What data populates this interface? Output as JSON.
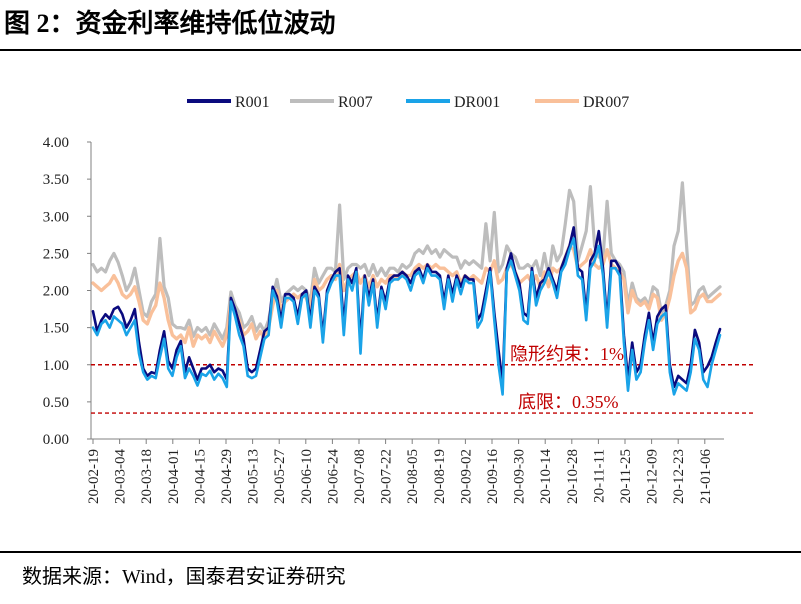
{
  "figure": {
    "title": "图 2：资金利率维持低位波动",
    "source": "数据来源：Wind，国泰君安证券研究"
  },
  "chart_data": {
    "type": "line",
    "title": "",
    "xlabel": "",
    "ylabel": "",
    "ylim": [
      0,
      4
    ],
    "yticks": [
      "0.00",
      "0.50",
      "1.00",
      "1.50",
      "2.00",
      "2.50",
      "3.00",
      "3.50",
      "4.00"
    ],
    "x_tick_labels": [
      "20-02-19",
      "20-03-04",
      "20-03-18",
      "20-04-01",
      "20-04-15",
      "20-04-29",
      "20-05-13",
      "20-05-27",
      "20-06-10",
      "20-06-24",
      "20-07-08",
      "20-07-22",
      "20-08-05",
      "20-08-19",
      "20-09-02",
      "20-09-16",
      "20-09-30",
      "20-10-14",
      "20-10-28",
      "20-11-11",
      "20-11-25",
      "20-12-09",
      "20-12-23",
      "21-01-06"
    ],
    "legend_position": "top",
    "grid": false,
    "series": [
      {
        "name": "R001",
        "color": "#0a0a7e",
        "values": [
          1.72,
          1.45,
          1.6,
          1.68,
          1.62,
          1.75,
          1.78,
          1.68,
          1.5,
          1.6,
          1.75,
          1.3,
          0.95,
          0.85,
          0.9,
          0.88,
          1.2,
          1.45,
          1.05,
          0.95,
          1.2,
          1.32,
          0.9,
          1.1,
          0.95,
          0.8,
          0.95,
          0.95,
          1.0,
          0.9,
          0.95,
          0.92,
          0.8,
          1.9,
          1.75,
          1.55,
          1.35,
          0.95,
          0.9,
          0.95,
          1.2,
          1.45,
          1.5,
          2.05,
          1.92,
          1.6,
          1.95,
          1.95,
          1.9,
          1.65,
          1.95,
          2.0,
          1.6,
          2.05,
          1.95,
          1.4,
          2.0,
          2.15,
          2.25,
          2.3,
          1.55,
          2.2,
          2.1,
          2.3,
          1.3,
          2.2,
          1.9,
          2.15,
          1.6,
          2.05,
          1.85,
          2.15,
          2.2,
          2.2,
          2.25,
          2.2,
          2.1,
          2.25,
          2.3,
          2.15,
          2.35,
          2.25,
          2.25,
          2.2,
          1.85,
          2.2,
          1.95,
          2.2,
          2.05,
          2.2,
          2.15,
          2.15,
          1.6,
          1.7,
          2.0,
          2.3,
          1.7,
          1.2,
          0.75,
          2.3,
          2.5,
          2.25,
          2.1,
          1.7,
          1.65,
          2.3,
          1.9,
          2.1,
          2.15,
          2.3,
          2.15,
          2.0,
          2.3,
          2.45,
          2.6,
          2.85,
          2.3,
          2.25,
          1.7,
          2.4,
          2.5,
          2.8,
          2.3,
          1.6,
          2.4,
          2.4,
          2.3,
          1.4,
          0.8,
          1.3,
          0.9,
          1.0,
          1.4,
          1.7,
          1.3,
          1.65,
          1.75,
          1.8,
          1.0,
          0.7,
          0.85,
          0.8,
          0.75,
          1.0,
          1.47,
          1.3,
          0.9,
          0.98,
          1.1,
          1.3,
          1.48
        ]
      },
      {
        "name": "R007",
        "color": "#bdbdbd",
        "values": [
          2.35,
          2.25,
          2.3,
          2.25,
          2.4,
          2.5,
          2.38,
          2.2,
          2.0,
          2.1,
          2.3,
          2.0,
          1.7,
          1.65,
          1.85,
          1.95,
          2.7,
          2.05,
          1.9,
          1.55,
          1.5,
          1.5,
          1.48,
          1.6,
          1.38,
          1.5,
          1.45,
          1.5,
          1.4,
          1.55,
          1.45,
          1.35,
          1.5,
          1.98,
          1.8,
          1.7,
          1.5,
          1.55,
          1.65,
          1.45,
          1.55,
          1.45,
          1.6,
          1.9,
          2.15,
          1.85,
          1.95,
          2.0,
          2.05,
          2.0,
          2.05,
          2.0,
          1.85,
          2.3,
          2.1,
          2.2,
          2.3,
          2.3,
          2.25,
          3.15,
          2.15,
          2.3,
          2.35,
          2.35,
          2.3,
          2.35,
          2.2,
          2.35,
          2.2,
          2.3,
          2.2,
          2.3,
          2.3,
          2.25,
          2.35,
          2.3,
          2.35,
          2.5,
          2.55,
          2.5,
          2.6,
          2.5,
          2.55,
          2.45,
          2.55,
          2.5,
          2.45,
          2.45,
          2.3,
          2.4,
          2.35,
          2.4,
          2.35,
          2.3,
          2.9,
          2.4,
          3.05,
          2.25,
          2.35,
          2.6,
          2.5,
          2.45,
          2.3,
          2.3,
          2.35,
          2.3,
          2.4,
          2.2,
          2.5,
          2.2,
          2.6,
          2.4,
          2.5,
          2.9,
          3.35,
          3.2,
          2.4,
          2.6,
          2.8,
          3.4,
          2.6,
          2.45,
          2.45,
          3.2,
          2.5,
          2.4,
          2.35,
          2.25,
          1.8,
          2.1,
          1.9,
          1.85,
          1.9,
          1.8,
          2.05,
          2.0,
          1.7,
          1.8,
          2.0,
          2.6,
          2.8,
          3.45,
          2.6,
          1.8,
          1.85,
          2.0,
          2.05,
          1.9,
          1.95,
          2.0,
          2.05
        ]
      },
      {
        "name": "DR001",
        "color": "#1aa3e8",
        "values": [
          1.5,
          1.4,
          1.55,
          1.6,
          1.5,
          1.65,
          1.6,
          1.55,
          1.4,
          1.5,
          1.6,
          1.15,
          0.9,
          0.8,
          0.85,
          0.82,
          1.1,
          1.35,
          0.95,
          0.85,
          1.1,
          1.25,
          0.82,
          0.95,
          0.85,
          0.72,
          0.88,
          0.85,
          0.92,
          0.8,
          0.88,
          0.82,
          0.7,
          1.85,
          1.65,
          1.4,
          1.25,
          0.85,
          0.82,
          0.85,
          1.1,
          1.35,
          1.4,
          2.0,
          1.85,
          1.5,
          1.9,
          1.9,
          1.85,
          1.55,
          1.9,
          1.95,
          1.5,
          2.0,
          1.9,
          1.3,
          1.95,
          2.1,
          2.2,
          2.2,
          1.4,
          2.15,
          2.0,
          2.25,
          1.15,
          2.15,
          1.8,
          2.1,
          1.5,
          2.0,
          1.75,
          2.1,
          2.15,
          2.15,
          2.2,
          2.15,
          2.0,
          2.2,
          2.25,
          2.1,
          2.3,
          2.2,
          2.2,
          2.15,
          1.75,
          2.15,
          1.85,
          2.15,
          1.95,
          2.15,
          2.1,
          2.1,
          1.5,
          1.6,
          1.9,
          2.25,
          1.6,
          1.0,
          0.6,
          2.25,
          2.4,
          2.2,
          2.0,
          1.6,
          1.55,
          2.25,
          1.8,
          2.0,
          2.1,
          2.25,
          2.1,
          1.9,
          2.25,
          2.35,
          2.55,
          2.7,
          2.2,
          2.15,
          1.6,
          2.3,
          2.4,
          2.6,
          2.2,
          1.5,
          2.3,
          2.3,
          2.2,
          1.3,
          0.65,
          1.2,
          0.8,
          0.9,
          1.3,
          1.6,
          1.2,
          1.55,
          1.65,
          1.7,
          0.9,
          0.6,
          0.75,
          0.7,
          0.65,
          0.9,
          1.35,
          1.2,
          0.8,
          0.7,
          1.0,
          1.2,
          1.4
        ]
      },
      {
        "name": "DR007",
        "color": "#f9c09a",
        "values": [
          2.1,
          2.05,
          2.0,
          2.05,
          2.1,
          2.2,
          2.1,
          1.95,
          1.9,
          1.95,
          2.05,
          1.85,
          1.6,
          1.55,
          1.7,
          1.8,
          2.1,
          1.9,
          1.6,
          1.4,
          1.35,
          1.4,
          1.3,
          1.5,
          1.25,
          1.4,
          1.35,
          1.4,
          1.3,
          1.45,
          1.35,
          1.25,
          1.4,
          1.85,
          1.7,
          1.6,
          1.4,
          1.45,
          1.55,
          1.35,
          1.45,
          1.35,
          1.5,
          1.8,
          2.0,
          1.75,
          1.85,
          1.9,
          1.95,
          1.9,
          1.95,
          1.9,
          1.75,
          2.15,
          2.0,
          2.05,
          2.15,
          2.2,
          2.15,
          2.35,
          2.0,
          2.15,
          2.2,
          2.25,
          2.1,
          2.2,
          2.05,
          2.2,
          2.05,
          2.15,
          2.1,
          2.2,
          2.2,
          2.15,
          2.25,
          2.2,
          2.2,
          2.3,
          2.35,
          2.3,
          2.35,
          2.3,
          2.35,
          2.3,
          2.3,
          2.25,
          2.2,
          2.25,
          2.1,
          2.2,
          2.15,
          2.2,
          2.15,
          2.1,
          2.3,
          2.25,
          2.4,
          2.1,
          2.15,
          2.3,
          2.35,
          2.25,
          2.1,
          2.15,
          2.2,
          2.1,
          2.2,
          2.05,
          2.25,
          2.05,
          2.3,
          2.25,
          2.3,
          2.45,
          2.6,
          2.55,
          2.3,
          2.35,
          2.4,
          2.55,
          2.35,
          2.3,
          2.35,
          2.55,
          2.35,
          2.3,
          2.25,
          2.15,
          1.7,
          2.0,
          1.85,
          1.8,
          1.85,
          1.75,
          1.95,
          1.9,
          1.6,
          1.7,
          1.9,
          2.2,
          2.4,
          2.5,
          2.3,
          1.7,
          1.75,
          1.9,
          1.95,
          1.85,
          1.85,
          1.9,
          1.95
        ]
      }
    ],
    "reference_lines": [
      {
        "value": 1.0,
        "label": "隐形约束：1%",
        "color": "#c00000",
        "style": "dashed"
      },
      {
        "value": 0.35,
        "label": "底限：0.35%",
        "color": "#c00000",
        "style": "dashed"
      }
    ]
  }
}
